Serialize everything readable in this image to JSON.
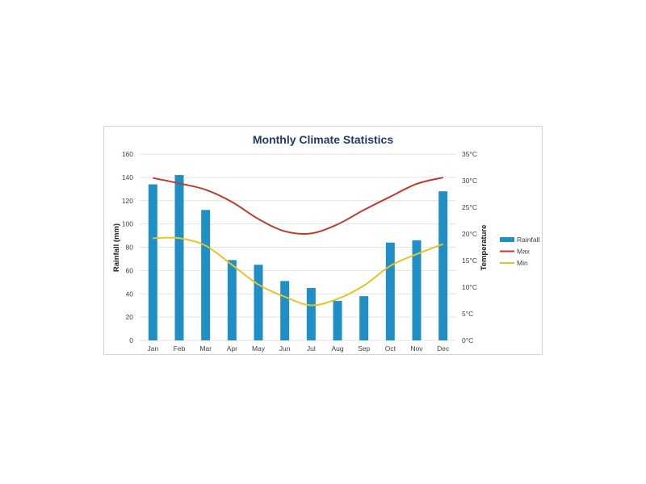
{
  "chart_data": {
    "type": "bar",
    "title": "Monthly Climate Statistics",
    "categories": [
      "Jan",
      "Feb",
      "Mar",
      "Apr",
      "May",
      "Jun",
      "Jul",
      "Aug",
      "Sep",
      "Oct",
      "Nov",
      "Dec"
    ],
    "ylabel": "Rainfall (mm)",
    "ylabel_right": "Temperature",
    "ylim": [
      0,
      160
    ],
    "yticks": [
      0,
      20,
      40,
      60,
      80,
      100,
      120,
      140,
      160
    ],
    "y2lim": [
      0,
      35
    ],
    "y2ticks": [
      "0°C",
      "5°C",
      "10°C",
      "15°C",
      "20°C",
      "25°C",
      "30°C",
      "35°C"
    ],
    "grid": true,
    "legend_position": "right",
    "series": [
      {
        "name": "Rainfall",
        "type": "bar",
        "axis": "left",
        "color": "#1f8fc5",
        "values": [
          134,
          142,
          112,
          69,
          65,
          51,
          45,
          34,
          38,
          84,
          86,
          128
        ]
      },
      {
        "name": "Max",
        "type": "line",
        "axis": "right",
        "color": "#c0392b",
        "values": [
          30.5,
          29.5,
          28.3,
          26.0,
          22.8,
          20.5,
          20.1,
          21.8,
          24.5,
          27.0,
          29.4,
          30.6
        ]
      },
      {
        "name": "Min",
        "type": "line",
        "axis": "right",
        "color": "#e6c327",
        "values": [
          19.2,
          19.2,
          17.8,
          14.2,
          10.5,
          8.2,
          6.6,
          7.8,
          10.3,
          14.0,
          16.2,
          18.1
        ]
      }
    ]
  }
}
